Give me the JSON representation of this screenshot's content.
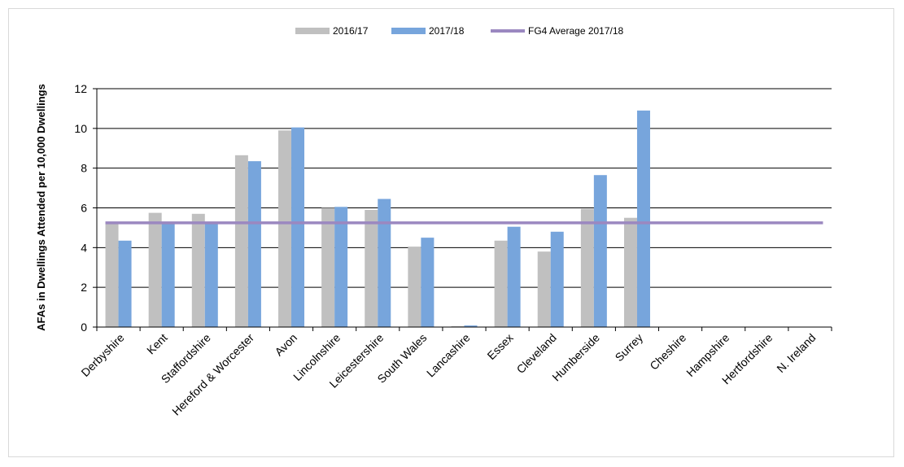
{
  "chart_data": {
    "type": "bar",
    "title": "",
    "xlabel": "",
    "ylabel": "AFAs in Dwellings Attended per 10,000 Dwellings",
    "ylim": [
      0,
      12
    ],
    "yticks": [
      0,
      2,
      4,
      6,
      8,
      10,
      12
    ],
    "grid": true,
    "legend_position": "top",
    "categories": [
      "Derbyshire",
      "Kent",
      "Staffordshire",
      "Hereford & Worcester",
      "Avon",
      "Lincolnshire",
      "Leicestershire",
      "South Wales",
      "Lancashire",
      "Essex",
      "Cleveland",
      "Humberside",
      "Surrey",
      "Cheshire",
      "Hampshire",
      "Hertfordshire",
      "N. Ireland"
    ],
    "series": [
      {
        "name": "2016/17",
        "color": "#c0c0c0",
        "values": [
          5.3,
          5.75,
          5.7,
          8.65,
          9.9,
          6.0,
          5.9,
          4.05,
          0.05,
          4.35,
          3.8,
          5.95,
          5.5,
          0,
          0,
          0,
          0
        ]
      },
      {
        "name": "2017/18",
        "color": "#77a5dc",
        "values": [
          4.35,
          5.25,
          5.25,
          8.35,
          10.05,
          6.05,
          6.45,
          4.5,
          0.08,
          5.05,
          4.8,
          7.65,
          10.9,
          0,
          0,
          0,
          0
        ]
      }
    ],
    "reference_line": {
      "name": "FG4 Average 2017/18",
      "value": 5.25,
      "color": "#9b88c0"
    }
  }
}
